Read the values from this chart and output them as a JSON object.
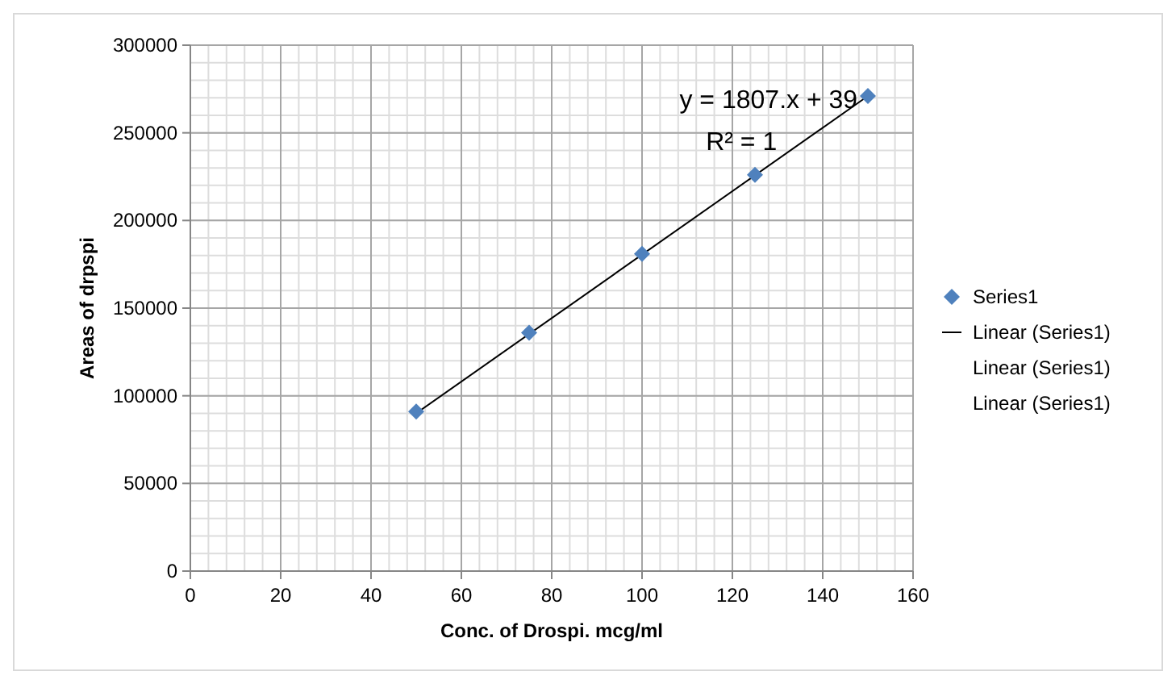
{
  "chart_data": {
    "type": "scatter",
    "xlabel": "Conc. of Drospi. mcg/ml",
    "ylabel": "Areas of drpspi",
    "x": [
      50,
      75,
      100,
      125,
      150
    ],
    "series": [
      {
        "name": "Series1",
        "color": "#4f81bd",
        "values": [
          91000,
          136000,
          181000,
          226000,
          271000
        ],
        "marker": "diamond"
      },
      {
        "name": "Linear (Series1)",
        "type": "line",
        "color": "#000000",
        "x": [
          50,
          150
        ],
        "values": [
          90000,
          271000
        ],
        "marker": "none"
      }
    ],
    "annotations": [
      "y = 1807.x + 39",
      "R² = 1",
      "Linear (Series1)",
      "Linear (Series1)"
    ],
    "xlim": [
      0,
      160
    ],
    "xticks": [
      0,
      20,
      40,
      60,
      80,
      100,
      120,
      140,
      160
    ],
    "ylim": [
      0,
      300000
    ],
    "yticks": [
      0,
      50000,
      100000,
      150000,
      200000,
      250000,
      300000
    ],
    "grid": true,
    "legend": "right"
  }
}
